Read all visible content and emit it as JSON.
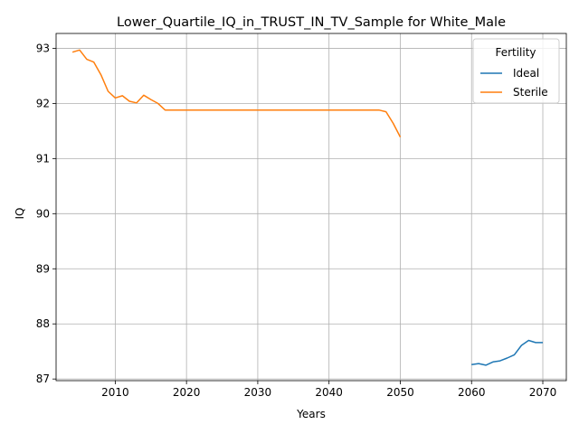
{
  "chart_data": {
    "type": "line",
    "title": "Lower_Quartile_IQ_in_TRUST_IN_TV_Sample for White_Male",
    "xlabel": "Years",
    "ylabel": "IQ",
    "xlim": [
      2001.7,
      2073.3
    ],
    "ylim": [
      86.97,
      93.27
    ],
    "xticks": [
      2010,
      2020,
      2030,
      2040,
      2050,
      2060,
      2070
    ],
    "yticks": [
      87,
      88,
      89,
      90,
      91,
      92,
      93
    ],
    "grid": true,
    "legend": {
      "title": "Fertility",
      "position": "top-right"
    },
    "series": [
      {
        "name": "Ideal",
        "color": "#1f77b4",
        "x": [
          2060,
          2061,
          2062,
          2063,
          2064,
          2065,
          2066,
          2067,
          2068,
          2069,
          2070
        ],
        "y": [
          87.26,
          87.28,
          87.25,
          87.31,
          87.33,
          87.38,
          87.44,
          87.61,
          87.7,
          87.66,
          87.66
        ]
      },
      {
        "name": "Sterile",
        "color": "#ff7f0e",
        "x": [
          2004,
          2005,
          2006,
          2007,
          2008,
          2009,
          2010,
          2011,
          2012,
          2013,
          2014,
          2015,
          2016,
          2017,
          2018,
          2019,
          2020,
          2025,
          2030,
          2035,
          2040,
          2045,
          2046,
          2047,
          2048,
          2049,
          2050
        ],
        "y": [
          92.93,
          92.97,
          92.8,
          92.75,
          92.52,
          92.22,
          92.1,
          92.14,
          92.04,
          92.01,
          92.15,
          92.07,
          92.0,
          91.88,
          91.88,
          91.88,
          91.88,
          91.88,
          91.88,
          91.88,
          91.88,
          91.88,
          91.88,
          91.88,
          91.85,
          91.64,
          91.39
        ]
      }
    ]
  }
}
